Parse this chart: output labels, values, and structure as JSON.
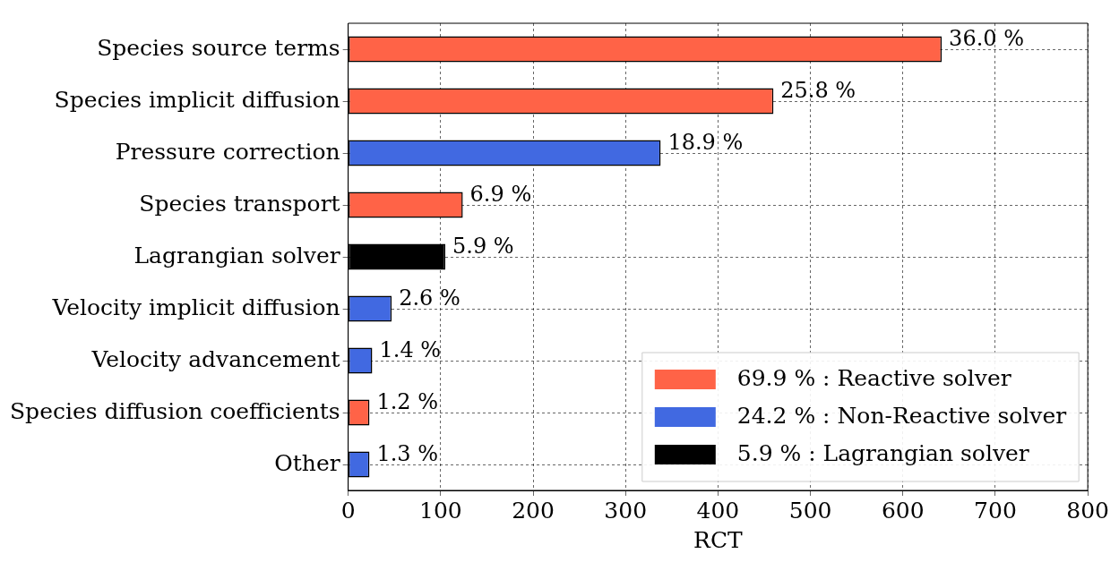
{
  "chart_data": {
    "type": "bar",
    "orientation": "horizontal",
    "stacked": true,
    "xlabel": "RCT",
    "categories": [
      "Species source terms",
      "Species implicit diffusion",
      "Pressure correction",
      "Species transport",
      "Lagrangian solver",
      "Velocity implicit diffusion",
      "Velocity advancement",
      "Species diffusion coefficients",
      "Other"
    ],
    "series": [
      {
        "name": "69.9 % : Reactive solver",
        "color": "#ff6347",
        "values": [
          642,
          460,
          null,
          124,
          null,
          null,
          null,
          23,
          null
        ]
      },
      {
        "name": "24.2 % : Non-Reactive solver",
        "color": "#4169e1",
        "values": [
          null,
          null,
          338,
          null,
          null,
          47,
          26,
          null,
          23
        ]
      },
      {
        "name": "5.9 % : Lagrangian solver",
        "color": "#000000",
        "values": [
          null,
          null,
          null,
          null,
          105,
          null,
          null,
          null,
          null
        ]
      }
    ],
    "annotations": [
      {
        "text": "36.0 %",
        "x": 642,
        "y": "Species source terms"
      },
      {
        "text": "25.8 %",
        "x": 460,
        "y": "Species implicit diffusion"
      },
      {
        "text": "18.9 %",
        "x": 338,
        "y": "Pressure correction"
      },
      {
        "text": "6.9 %",
        "x": 124,
        "y": "Species transport"
      },
      {
        "text": "5.9 %",
        "x": 105,
        "y": "Lagrangian solver"
      },
      {
        "text": "2.6 %",
        "x": 47,
        "y": "Velocity implicit diffusion"
      },
      {
        "text": "1.4 %",
        "x": 26,
        "y": "Velocity advancement"
      },
      {
        "text": "1.2 %",
        "x": 23,
        "y": "Species diffusion coefficients"
      },
      {
        "text": "1.3 %",
        "x": 23,
        "y": "Other"
      }
    ],
    "xlim": [
      0,
      800
    ],
    "xticks": [
      0,
      100,
      200,
      300,
      400,
      500,
      600,
      700,
      800
    ],
    "grid": true,
    "legend": "bottom right"
  }
}
